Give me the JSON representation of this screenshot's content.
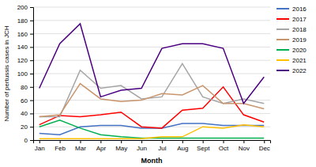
{
  "chart_data": {
    "type": "line",
    "categories": [
      "Jan",
      "Feb",
      "Mar",
      "Apr",
      "May",
      "Jun",
      "Jul",
      "Aug",
      "Sept",
      "Oct",
      "Nov",
      "Dec"
    ],
    "series": [
      {
        "name": "2016",
        "color": "#4472c4",
        "values": [
          10,
          8,
          20,
          22,
          22,
          18,
          18,
          25,
          25,
          22,
          22,
          22
        ]
      },
      {
        "name": "2017",
        "color": "#ff0000",
        "values": [
          23,
          37,
          35,
          38,
          42,
          20,
          18,
          45,
          48,
          80,
          38,
          27
        ]
      },
      {
        "name": "2018",
        "color": "#a5a5a5",
        "values": [
          35,
          35,
          105,
          78,
          82,
          62,
          65,
          115,
          65,
          55,
          62,
          55
        ]
      },
      {
        "name": "2019",
        "color": "#c9956c",
        "values": [
          35,
          38,
          85,
          62,
          58,
          60,
          70,
          68,
          82,
          55,
          55,
          47
        ]
      },
      {
        "name": "2020",
        "color": "#00b050",
        "values": [
          20,
          30,
          18,
          8,
          5,
          3,
          3,
          3,
          3,
          3,
          3,
          3
        ]
      },
      {
        "name": "2021",
        "color": "#ffc000",
        "values": [
          2,
          2,
          2,
          2,
          2,
          2,
          5,
          5,
          20,
          18,
          23,
          20
        ]
      },
      {
        "name": "2022",
        "color": "#4b0082",
        "values": [
          78,
          145,
          175,
          65,
          75,
          78,
          138,
          145,
          145,
          138,
          55,
          95
        ]
      }
    ],
    "xlabel": "Month",
    "ylabel": "Number of pertussis cases in JCH",
    "ylim": [
      0,
      200
    ],
    "yticks": [
      0,
      20,
      40,
      60,
      80,
      100,
      120,
      140,
      160,
      180,
      200
    ],
    "grid": true,
    "legend": "right"
  }
}
